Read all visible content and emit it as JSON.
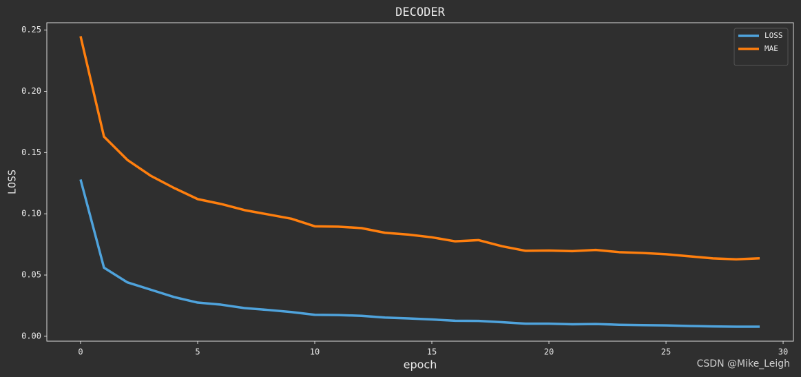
{
  "chart_data": {
    "type": "line",
    "title": "DECODER",
    "xlabel": "epoch",
    "ylabel": "LOSS",
    "watermark": "CSDN @Mike_Leigh",
    "x": [
      0,
      1,
      2,
      3,
      4,
      5,
      6,
      7,
      8,
      9,
      10,
      11,
      12,
      13,
      14,
      15,
      16,
      17,
      18,
      19,
      20,
      21,
      22,
      23,
      24,
      25,
      26,
      27,
      28,
      29
    ],
    "series": [
      {
        "name": "LOSS",
        "color": "#4fa3dc",
        "values": [
          0.128,
          0.056,
          0.044,
          0.038,
          0.032,
          0.0275,
          0.0258,
          0.023,
          0.0215,
          0.0198,
          0.0175,
          0.0173,
          0.0167,
          0.0153,
          0.0146,
          0.0137,
          0.0127,
          0.0125,
          0.0115,
          0.0103,
          0.0103,
          0.0098,
          0.01,
          0.0094,
          0.0091,
          0.0089,
          0.0084,
          0.008,
          0.0078,
          0.0078
        ]
      },
      {
        "name": "MAE",
        "color": "#ff7f0e",
        "values": [
          0.245,
          0.163,
          0.144,
          0.131,
          0.121,
          0.112,
          0.108,
          0.103,
          0.0995,
          0.096,
          0.0898,
          0.0895,
          0.0883,
          0.0845,
          0.083,
          0.0808,
          0.0775,
          0.0785,
          0.0735,
          0.0698,
          0.07,
          0.0695,
          0.0705,
          0.0687,
          0.068,
          0.067,
          0.0653,
          0.0636,
          0.0628,
          0.0637
        ]
      }
    ],
    "xlim": [
      -1.44,
      30.44
    ],
    "xticks": [
      0,
      5,
      10,
      15,
      20,
      25,
      30
    ],
    "ylim": [
      -0.004,
      0.256
    ],
    "yticks": [
      {
        "value": 0,
        "label": "0.00"
      },
      0.05,
      {
        "value": 0.1,
        "label": "0.10"
      },
      0.15,
      {
        "value": 0.2,
        "label": "0.20"
      },
      0.25
    ],
    "legend": "upper right",
    "grid": false
  }
}
